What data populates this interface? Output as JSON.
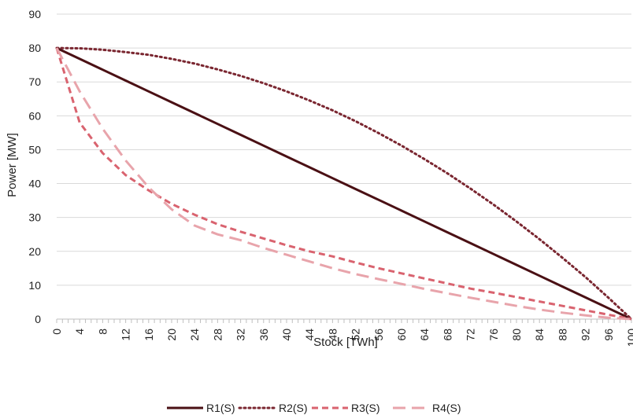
{
  "chart_data": {
    "type": "line",
    "xlabel": "Stock [TWh]",
    "ylabel": "Power [MW]",
    "xlim": [
      0,
      100
    ],
    "ylim": [
      0,
      90
    ],
    "x_ticks": [
      0,
      4,
      8,
      12,
      16,
      20,
      24,
      28,
      32,
      36,
      40,
      44,
      48,
      52,
      56,
      60,
      64,
      68,
      72,
      76,
      80,
      84,
      88,
      92,
      96,
      100
    ],
    "y_ticks": [
      0,
      10,
      20,
      30,
      40,
      50,
      60,
      70,
      80,
      90
    ],
    "grid": "horizontal",
    "legend_position": "bottom",
    "x": [
      0,
      4,
      8,
      12,
      16,
      20,
      24,
      28,
      32,
      36,
      40,
      44,
      48,
      52,
      56,
      60,
      64,
      68,
      72,
      76,
      80,
      84,
      88,
      92,
      96,
      100
    ],
    "series": [
      {
        "name": "R1(S)",
        "style": "solid",
        "color": "#4a1014",
        "values": [
          80,
          76.8,
          73.6,
          70.4,
          67.2,
          64,
          60.8,
          57.6,
          54.4,
          51.2,
          48,
          44.8,
          41.6,
          38.4,
          35.2,
          32,
          28.8,
          25.6,
          22.4,
          19.2,
          16,
          12.8,
          9.6,
          6.4,
          3.2,
          0
        ]
      },
      {
        "name": "R2(S)",
        "style": "dotted",
        "color": "#7a2630",
        "values": [
          80,
          79.9,
          79.5,
          78.8,
          78,
          76.8,
          75.4,
          73.7,
          71.8,
          69.6,
          67.2,
          64.5,
          61.6,
          58.4,
          54.9,
          51.2,
          47.2,
          43,
          38.5,
          33.8,
          28.8,
          23.6,
          18.1,
          12.4,
          6.3,
          0
        ]
      },
      {
        "name": "R3(S)",
        "style": "dashed",
        "color": "#d9636f",
        "values": [
          80,
          58,
          49,
          42.5,
          38,
          34,
          30.8,
          28,
          25.8,
          23.8,
          21.8,
          20,
          18.5,
          16.7,
          15,
          13.5,
          12,
          10.5,
          9,
          7.8,
          6.5,
          5.2,
          3.9,
          2.6,
          1.3,
          0
        ]
      },
      {
        "name": "R4(S)",
        "style": "longdash",
        "color": "#e8a4ab",
        "values": [
          80,
          67.2,
          56.2,
          46.8,
          38.9,
          32.4,
          27.6,
          25,
          23.3,
          21,
          19,
          17,
          15,
          13.3,
          11.8,
          10.4,
          8.9,
          7.6,
          6.3,
          5.1,
          3.9,
          2.8,
          1.9,
          1.1,
          0.4,
          0
        ]
      }
    ]
  }
}
